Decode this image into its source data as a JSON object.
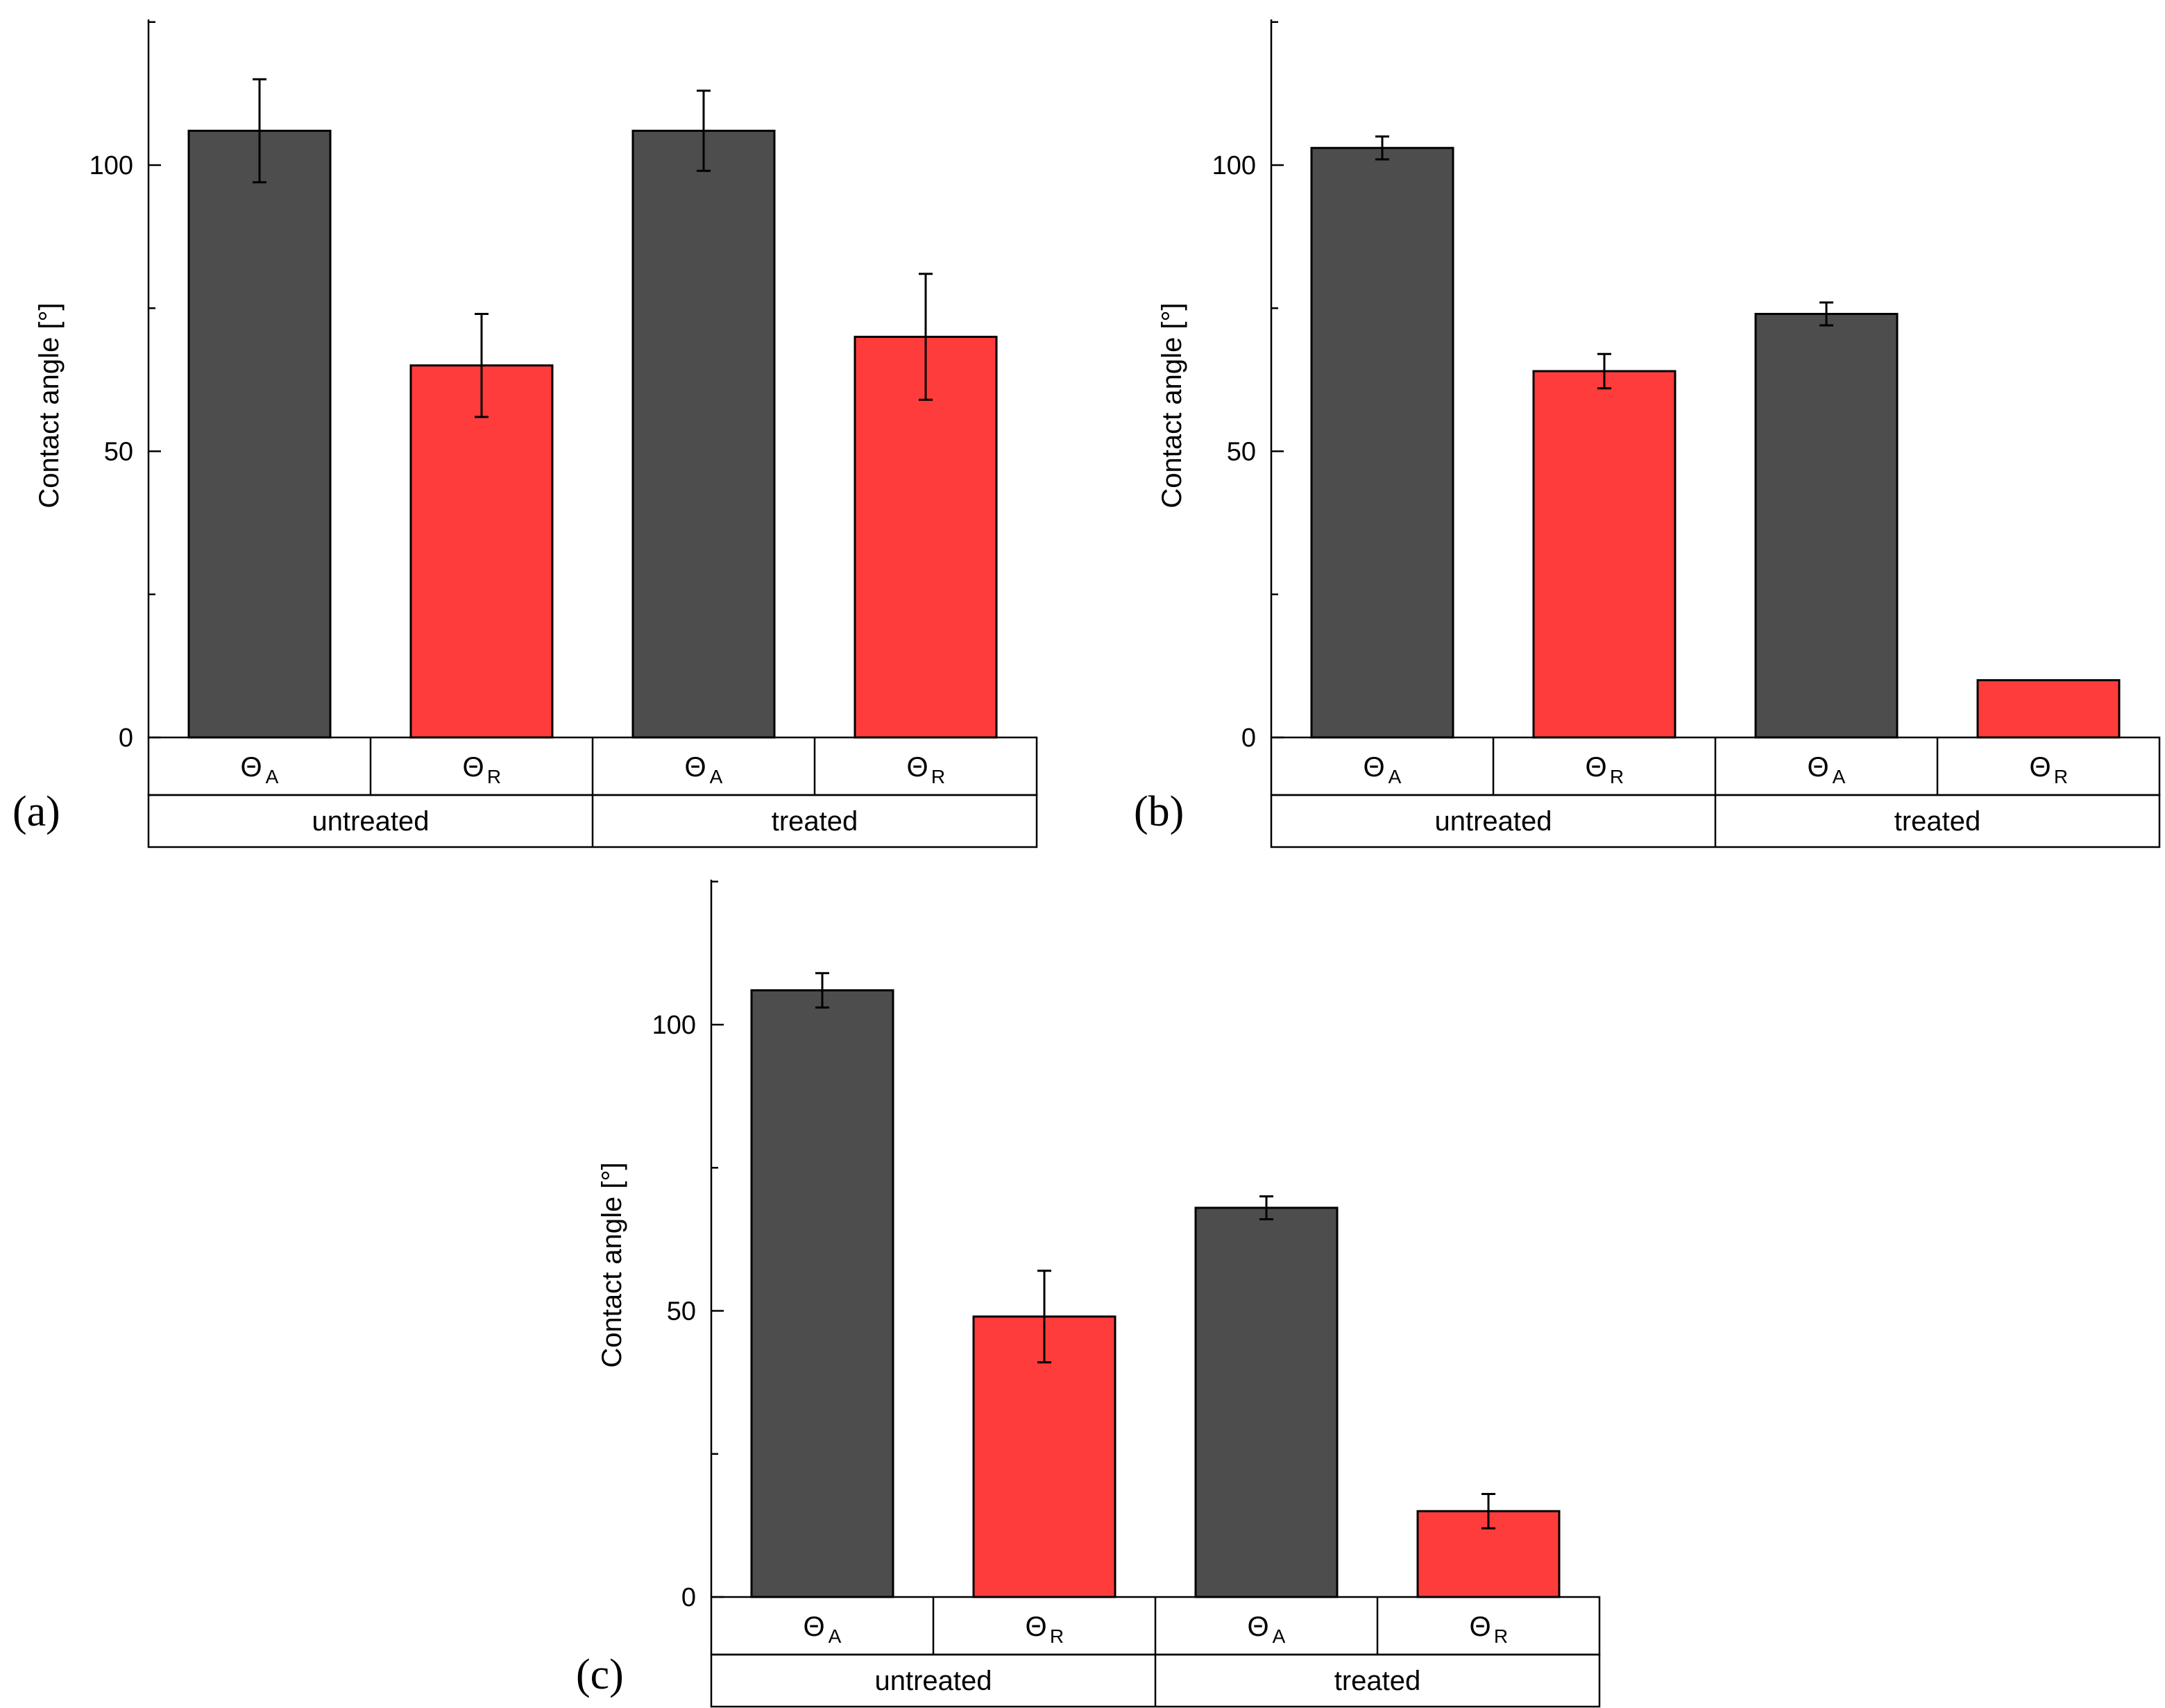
{
  "colors": {
    "advancing": "#4d4d4d",
    "receding": "#ff3c3c",
    "axis": "#000000"
  },
  "chart_data": [
    {
      "panel": "(a)",
      "type": "bar",
      "ylabel": "Contact angle [°]",
      "ylim": [
        0,
        125
      ],
      "yticks": [
        0,
        50,
        100
      ],
      "groups": [
        "untreated",
        "treated"
      ],
      "symbol": "Θ",
      "bar_subscripts": [
        "A",
        "R"
      ],
      "series": [
        {
          "name": "Θ_A",
          "values": [
            106,
            106
          ],
          "errors": [
            9,
            7
          ]
        },
        {
          "name": "Θ_R",
          "values": [
            65,
            70
          ],
          "errors": [
            9,
            11
          ]
        }
      ]
    },
    {
      "panel": "(b)",
      "type": "bar",
      "ylabel": "Contact angle [°]",
      "ylim": [
        0,
        125
      ],
      "yticks": [
        0,
        50,
        100
      ],
      "groups": [
        "untreated",
        "treated"
      ],
      "symbol": "Θ",
      "bar_subscripts": [
        "A",
        "R"
      ],
      "series": [
        {
          "name": "Θ_A",
          "values": [
            103,
            74
          ],
          "errors": [
            2,
            2
          ]
        },
        {
          "name": "Θ_R",
          "values": [
            64,
            10
          ],
          "errors": [
            3,
            0
          ]
        }
      ]
    },
    {
      "panel": "(c)",
      "type": "bar",
      "ylabel": "Contact angle [°]",
      "ylim": [
        0,
        125
      ],
      "yticks": [
        0,
        50,
        100
      ],
      "groups": [
        "untreated",
        "treated"
      ],
      "symbol": "Θ",
      "bar_subscripts": [
        "A",
        "R"
      ],
      "series": [
        {
          "name": "Θ_A",
          "values": [
            106,
            68
          ],
          "errors": [
            3,
            2
          ]
        },
        {
          "name": "Θ_R",
          "values": [
            49,
            15
          ],
          "errors": [
            8,
            3
          ]
        }
      ]
    }
  ]
}
